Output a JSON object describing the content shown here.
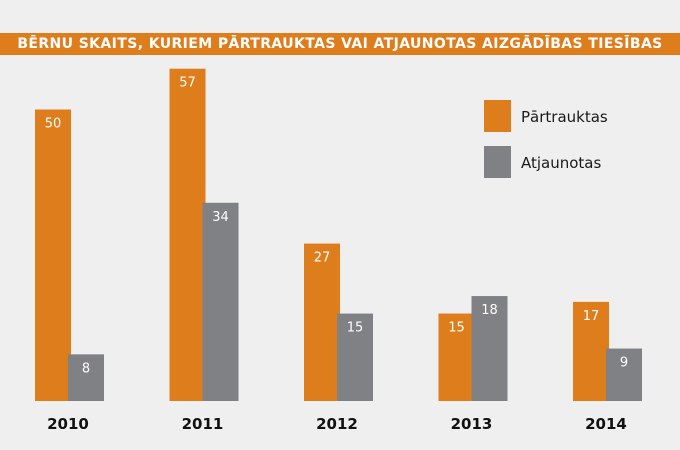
{
  "colors": {
    "background": "#efefef",
    "title_bar": "#de7d1c",
    "series_terminated": "#de7d1c",
    "series_restored": "#808184"
  },
  "chart_data": {
    "type": "bar",
    "title": "BĒRNU SKAITS, KURIEM PĀRTRAUKTAS VAI ATJAUNOTAS AIZGĀDĪBAS TIESĪBAS",
    "categories": [
      "2010",
      "2011",
      "2012",
      "2013",
      "2014"
    ],
    "series": [
      {
        "name": "Pārtrauktas",
        "values": [
          50,
          57,
          27,
          15,
          17
        ],
        "color": "#de7d1c"
      },
      {
        "name": "Atjaunotas",
        "values": [
          8,
          34,
          15,
          18,
          9
        ],
        "color": "#808184"
      }
    ],
    "ylim": [
      0,
      60
    ],
    "grid": false,
    "legend": "top-right",
    "data_labels": true
  }
}
